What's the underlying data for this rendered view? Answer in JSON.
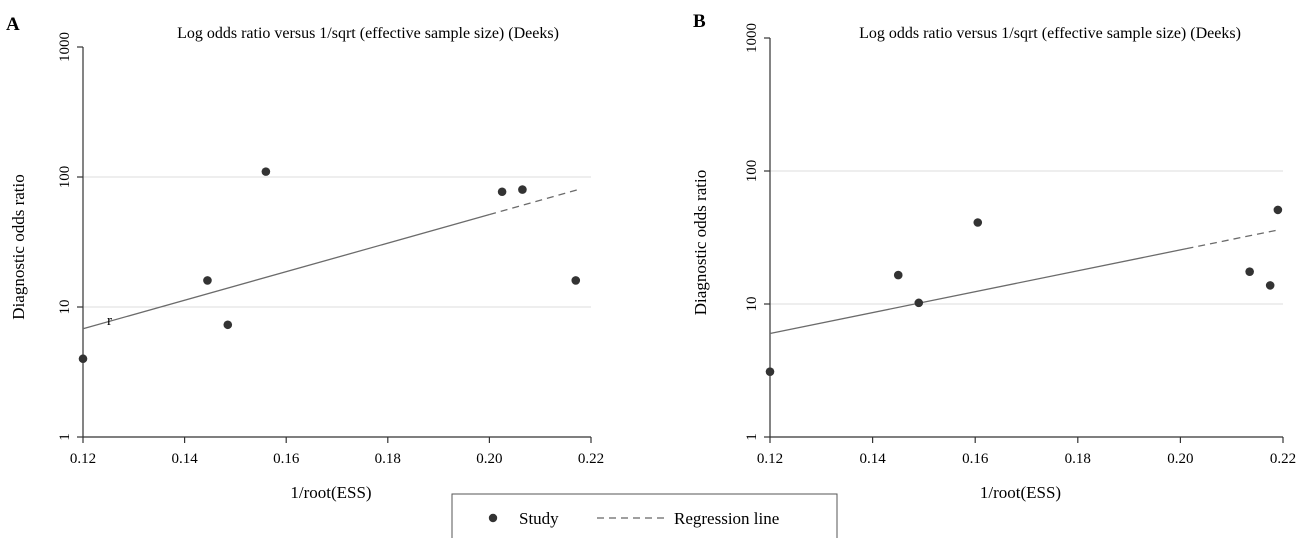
{
  "legend": {
    "study_label": "Study",
    "regression_label": "Regression line"
  },
  "chart_data": [
    {
      "panel": "A",
      "type": "scatter",
      "title": "Log odds ratio versus 1/sqrt (effective sample size) (Deeks)",
      "xlabel": "1/root(ESS)",
      "ylabel": "Diagnostic odds ratio",
      "yscale": "log",
      "xlim": [
        0.12,
        0.22
      ],
      "ylim": [
        1,
        1000
      ],
      "x_ticks": [
        0.12,
        0.14,
        0.16,
        0.18,
        0.2,
        0.22
      ],
      "x_tick_labels": [
        "0.12",
        "0.14",
        "0.16",
        "0.18",
        "0.20",
        "0.22"
      ],
      "y_ticks": [
        1,
        10,
        100,
        1000
      ],
      "y_tick_labels": [
        "1",
        "10",
        "100",
        "1000"
      ],
      "grid": "horizontal at 10 and 100",
      "points": [
        {
          "x": 0.12,
          "y": 4.0
        },
        {
          "x": 0.1445,
          "y": 16
        },
        {
          "x": 0.1485,
          "y": 7.3
        },
        {
          "x": 0.156,
          "y": 110
        },
        {
          "x": 0.2025,
          "y": 77
        },
        {
          "x": 0.2065,
          "y": 80
        },
        {
          "x": 0.217,
          "y": 16
        }
      ],
      "regression_line": {
        "x": [
          0.12,
          0.2175
        ],
        "y": [
          6.8,
          80
        ]
      },
      "annotation": "r"
    },
    {
      "panel": "B",
      "type": "scatter",
      "title": "Log odds ratio versus 1/sqrt (effective sample size) (Deeks)",
      "xlabel": "1/root(ESS)",
      "ylabel": "Diagnostic odds ratio",
      "yscale": "log",
      "xlim": [
        0.12,
        0.22
      ],
      "ylim": [
        1,
        1000
      ],
      "x_ticks": [
        0.12,
        0.14,
        0.16,
        0.18,
        0.2,
        0.22
      ],
      "x_tick_labels": [
        "0.12",
        "0.14",
        "0.16",
        "0.18",
        "0.20",
        "0.22"
      ],
      "y_ticks": [
        1,
        10,
        100,
        1000
      ],
      "y_tick_labels": [
        "1",
        "10",
        "100",
        "1000"
      ],
      "grid": "horizontal at 10 and 100",
      "points": [
        {
          "x": 0.12,
          "y": 3.1
        },
        {
          "x": 0.145,
          "y": 16.5
        },
        {
          "x": 0.149,
          "y": 10.2
        },
        {
          "x": 0.1605,
          "y": 41
        },
        {
          "x": 0.2135,
          "y": 17.5
        },
        {
          "x": 0.2175,
          "y": 13.8
        },
        {
          "x": 0.219,
          "y": 51
        }
      ],
      "regression_line": {
        "x": [
          0.12,
          0.219
        ],
        "y": [
          6.0,
          36
        ]
      },
      "annotation": ""
    }
  ]
}
